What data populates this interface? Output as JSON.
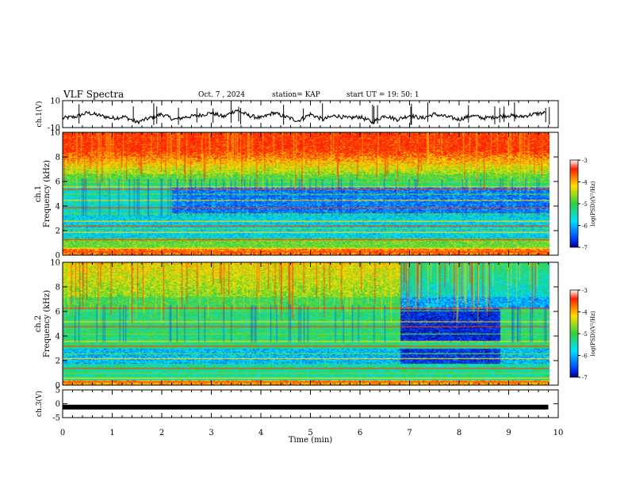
{
  "header": {
    "title": "VLF Spectra",
    "date": "Oct. 7 , 2024",
    "station": "station= KAP",
    "start": "start UT = 19: 50: 1"
  },
  "chart_data": [
    {
      "type": "line",
      "panel": "ch1-waveform",
      "ylabel": "ch.1(V)",
      "ylim": [
        -10,
        10
      ],
      "yticks": [
        "10",
        "-10"
      ],
      "xlim": [
        0,
        10
      ],
      "series": [
        {
          "x": [
            0,
            0.25,
            0.5,
            0.75,
            1,
            1.25,
            1.5,
            1.75,
            2,
            2.25,
            2.5,
            2.75,
            3,
            3.25,
            3.5,
            3.75,
            4,
            4.25,
            4.5,
            4.75,
            5,
            5.25,
            5.5,
            5.75,
            6,
            6.25,
            6.5,
            6.75,
            7,
            7.25,
            7.5,
            7.75,
            8,
            8.25,
            8.5,
            8.75,
            9,
            9.25,
            9.5,
            9.75
          ],
          "values": [
            -3,
            -2,
            1,
            -1,
            -3,
            -2,
            -6,
            -3,
            0,
            -4,
            -2,
            -1,
            1,
            -2,
            3,
            -1,
            -3,
            1,
            -2,
            -5,
            0,
            -4,
            -1,
            -3,
            -2,
            -6,
            -1,
            -4,
            -1,
            -3,
            0,
            -2,
            -4,
            -1,
            -3,
            -2,
            -1,
            -2,
            0,
            1
          ]
        }
      ]
    },
    {
      "type": "heatmap",
      "panel": "ch1-spectrogram",
      "ylabel": "ch.1 Frequency (kHz)",
      "ylim": [
        0,
        10
      ],
      "yticks": [
        "0",
        "2",
        "4",
        "6",
        "8",
        "10"
      ],
      "xlim": [
        0,
        10
      ],
      "colorbar": {
        "label": "log(PSD)(V²/Hz)",
        "range": [
          -7,
          -3
        ],
        "ticks": [
          "-3",
          "-4",
          "-5",
          "-6",
          "-7"
        ]
      }
    },
    {
      "type": "heatmap",
      "panel": "ch2-spectrogram",
      "ylabel": "ch.2 Frequency (kHz)",
      "ylim": [
        0,
        10
      ],
      "yticks": [
        "0",
        "2",
        "4",
        "6",
        "8",
        "10"
      ],
      "xlim": [
        0,
        10
      ],
      "colorbar": {
        "label": "log(PSD)(V²/Hz)",
        "range": [
          -7,
          -3
        ],
        "ticks": [
          "-3",
          "-4",
          "-5",
          "-6",
          "-7"
        ]
      }
    },
    {
      "type": "line",
      "panel": "ch3-waveform",
      "ylabel": "ch.3(V)",
      "ylim": [
        -5,
        5
      ],
      "yticks": [
        "5",
        "0",
        "-5"
      ],
      "xlim": [
        0,
        10
      ],
      "series": [
        {
          "x": [
            0,
            9.8
          ],
          "values": [
            -1.2,
            -1.2
          ]
        }
      ]
    }
  ],
  "xaxis": {
    "label": "Time (min)",
    "ticks": [
      "0",
      "1",
      "2",
      "3",
      "4",
      "5",
      "6",
      "7",
      "8",
      "9",
      "10"
    ]
  },
  "colors": {
    "red": "#ff2000",
    "yellow": "#ffe000",
    "green": "#30d040",
    "cyan": "#00e0ff",
    "blue": "#0040ff"
  }
}
